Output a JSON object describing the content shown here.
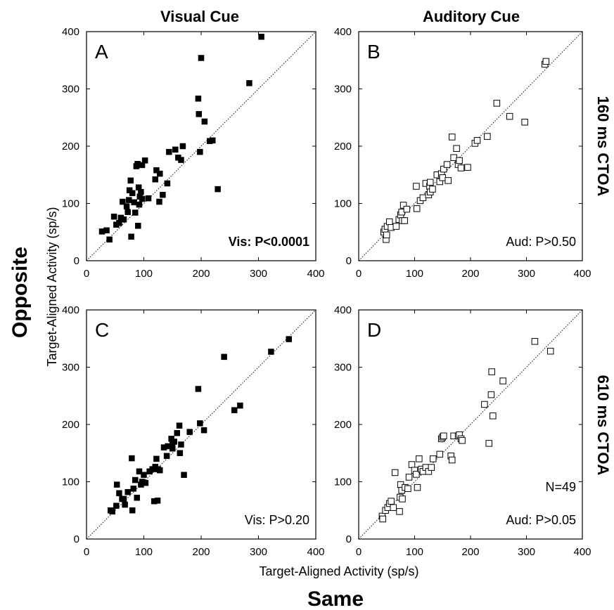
{
  "figure": {
    "column_titles": [
      "Visual Cue",
      "Auditory Cue"
    ],
    "row_titles": [
      "160 ms CTOA",
      "610 ms CTOA"
    ],
    "y_super_label": "Opposite",
    "x_super_label": "Same",
    "y_axis_label": "Target-Aligned Activity (sp/s)",
    "x_axis_label": "Target-Aligned Activity (sp/s)"
  },
  "chart_data": [
    {
      "type": "scatter",
      "panel": "A",
      "column": "Visual Cue",
      "row": "160 ms CTOA",
      "xlim": [
        0,
        400
      ],
      "ylim": [
        0,
        400
      ],
      "ticks": [
        0,
        100,
        200,
        300,
        400
      ],
      "marker": "filled-square",
      "marker_color": "#000000",
      "unity_line": true,
      "annotations": [
        "Vis: P<0.0001"
      ],
      "annotation_bold": true,
      "points": [
        [
          27,
          51
        ],
        [
          35,
          53
        ],
        [
          40,
          37
        ],
        [
          48,
          77
        ],
        [
          52,
          63
        ],
        [
          57,
          66
        ],
        [
          60,
          75
        ],
        [
          63,
          103
        ],
        [
          65,
          72
        ],
        [
          70,
          95
        ],
        [
          72,
          85
        ],
        [
          74,
          106
        ],
        [
          75,
          123
        ],
        [
          77,
          140
        ],
        [
          78,
          42
        ],
        [
          80,
          118
        ],
        [
          83,
          102
        ],
        [
          85,
          84
        ],
        [
          87,
          165
        ],
        [
          89,
          169
        ],
        [
          90,
          61
        ],
        [
          91,
          128
        ],
        [
          92,
          98
        ],
        [
          93,
          112
        ],
        [
          95,
          120
        ],
        [
          97,
          108
        ],
        [
          97,
          167
        ],
        [
          102,
          175
        ],
        [
          108,
          109
        ],
        [
          120,
          142
        ],
        [
          122,
          158
        ],
        [
          127,
          103
        ],
        [
          128,
          152
        ],
        [
          133,
          115
        ],
        [
          141,
          135
        ],
        [
          144,
          190
        ],
        [
          155,
          194
        ],
        [
          160,
          180
        ],
        [
          165,
          176
        ],
        [
          168,
          200
        ],
        [
          195,
          283
        ],
        [
          196,
          256
        ],
        [
          198,
          190
        ],
        [
          200,
          354
        ],
        [
          206,
          243
        ],
        [
          215,
          209
        ],
        [
          220,
          210
        ],
        [
          229,
          125
        ],
        [
          284,
          310
        ],
        [
          305,
          391
        ]
      ]
    },
    {
      "type": "scatter",
      "panel": "B",
      "column": "Auditory Cue",
      "row": "160 ms CTOA",
      "xlim": [
        0,
        400
      ],
      "ylim": [
        0,
        400
      ],
      "ticks": [
        0,
        100,
        200,
        300,
        400
      ],
      "marker": "open-square",
      "marker_color": "#000000",
      "unity_line": true,
      "annotations": [
        "Aud: P>0.50"
      ],
      "points": [
        [
          45,
          50
        ],
        [
          47,
          55
        ],
        [
          49,
          37
        ],
        [
          50,
          45
        ],
        [
          51,
          60
        ],
        [
          55,
          68
        ],
        [
          58,
          58
        ],
        [
          67,
          60
        ],
        [
          72,
          72
        ],
        [
          75,
          80
        ],
        [
          77,
          85
        ],
        [
          78,
          70
        ],
        [
          80,
          97
        ],
        [
          82,
          70
        ],
        [
          86,
          90
        ],
        [
          103,
          130
        ],
        [
          104,
          91
        ],
        [
          110,
          105
        ],
        [
          115,
          110
        ],
        [
          120,
          135
        ],
        [
          125,
          115
        ],
        [
          127,
          130
        ],
        [
          128,
          137
        ],
        [
          128,
          120
        ],
        [
          132,
          125
        ],
        [
          140,
          150
        ],
        [
          145,
          138
        ],
        [
          148,
          152
        ],
        [
          150,
          145
        ],
        [
          152,
          160
        ],
        [
          158,
          168
        ],
        [
          160,
          140
        ],
        [
          167,
          216
        ],
        [
          170,
          180
        ],
        [
          175,
          196
        ],
        [
          178,
          168
        ],
        [
          180,
          175
        ],
        [
          183,
          162
        ],
        [
          195,
          163
        ],
        [
          208,
          205
        ],
        [
          212,
          210
        ],
        [
          230,
          217
        ],
        [
          247,
          275
        ],
        [
          270,
          252
        ],
        [
          297,
          242
        ],
        [
          333,
          343
        ],
        [
          335,
          348
        ]
      ]
    },
    {
      "type": "scatter",
      "panel": "C",
      "column": "Visual Cue",
      "row": "610 ms CTOA",
      "xlim": [
        0,
        400
      ],
      "ylim": [
        0,
        400
      ],
      "ticks": [
        0,
        100,
        200,
        300,
        400
      ],
      "marker": "filled-square",
      "marker_color": "#000000",
      "unity_line": true,
      "annotations": [
        "Vis: P>0.20"
      ],
      "points": [
        [
          42,
          50
        ],
        [
          45,
          48
        ],
        [
          52,
          58
        ],
        [
          53,
          95
        ],
        [
          57,
          80
        ],
        [
          62,
          70
        ],
        [
          65,
          70
        ],
        [
          67,
          60
        ],
        [
          72,
          82
        ],
        [
          79,
          141
        ],
        [
          80,
          50
        ],
        [
          82,
          88
        ],
        [
          85,
          103
        ],
        [
          88,
          72
        ],
        [
          92,
          118
        ],
        [
          95,
          95
        ],
        [
          97,
          100
        ],
        [
          100,
          112
        ],
        [
          103,
          98
        ],
        [
          110,
          118
        ],
        [
          115,
          122
        ],
        [
          118,
          66
        ],
        [
          120,
          126
        ],
        [
          122,
          140
        ],
        [
          124,
          67
        ],
        [
          125,
          122
        ],
        [
          128,
          120
        ],
        [
          135,
          160
        ],
        [
          140,
          145
        ],
        [
          142,
          162
        ],
        [
          148,
          175
        ],
        [
          150,
          168
        ],
        [
          150,
          158
        ],
        [
          153,
          170
        ],
        [
          158,
          185
        ],
        [
          162,
          198
        ],
        [
          163,
          150
        ],
        [
          165,
          165
        ],
        [
          170,
          112
        ],
        [
          180,
          187
        ],
        [
          195,
          262
        ],
        [
          198,
          202
        ],
        [
          205,
          190
        ],
        [
          240,
          318
        ],
        [
          258,
          225
        ],
        [
          268,
          233
        ],
        [
          322,
          327
        ],
        [
          353,
          349
        ]
      ]
    },
    {
      "type": "scatter",
      "panel": "D",
      "column": "Auditory Cue",
      "row": "610 ms CTOA",
      "xlim": [
        0,
        400
      ],
      "ylim": [
        0,
        400
      ],
      "ticks": [
        0,
        100,
        200,
        300,
        400
      ],
      "marker": "open-square",
      "marker_color": "#000000",
      "unity_line": true,
      "annotations": [
        "N=49",
        "Aud: P>0.05"
      ],
      "points": [
        [
          42,
          40
        ],
        [
          43,
          35
        ],
        [
          48,
          50
        ],
        [
          52,
          55
        ],
        [
          55,
          62
        ],
        [
          58,
          66
        ],
        [
          62,
          55
        ],
        [
          65,
          116
        ],
        [
          73,
          48
        ],
        [
          74,
          73
        ],
        [
          75,
          95
        ],
        [
          77,
          85
        ],
        [
          78,
          70
        ],
        [
          83,
          90
        ],
        [
          88,
          88
        ],
        [
          90,
          108
        ],
        [
          95,
          130
        ],
        [
          100,
          120
        ],
        [
          103,
          113
        ],
        [
          105,
          90
        ],
        [
          108,
          140
        ],
        [
          112,
          122
        ],
        [
          115,
          118
        ],
        [
          120,
          125
        ],
        [
          125,
          118
        ],
        [
          130,
          125
        ],
        [
          133,
          140
        ],
        [
          145,
          148
        ],
        [
          148,
          175
        ],
        [
          150,
          178
        ],
        [
          152,
          180
        ],
        [
          165,
          145
        ],
        [
          167,
          138
        ],
        [
          170,
          180
        ],
        [
          178,
          180
        ],
        [
          180,
          182
        ],
        [
          183,
          175
        ],
        [
          185,
          172
        ],
        [
          225,
          235
        ],
        [
          233,
          167
        ],
        [
          237,
          252
        ],
        [
          238,
          292
        ],
        [
          240,
          215
        ],
        [
          258,
          276
        ],
        [
          315,
          345
        ],
        [
          343,
          328
        ]
      ]
    }
  ]
}
